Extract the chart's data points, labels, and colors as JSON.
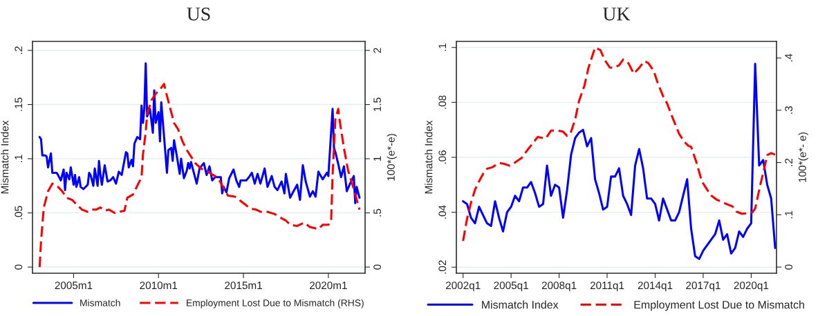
{
  "chart_data": [
    {
      "type": "line",
      "title": "US",
      "ylabel": "Mismatch Index",
      "y2label": "100*(e*-e)",
      "xlim": [
        "2002-08",
        "2022-03"
      ],
      "xticks": [
        {
          "value": "2005-01",
          "label": "2005m1"
        },
        {
          "value": "2010-01",
          "label": "2010m1"
        },
        {
          "value": "2015-01",
          "label": "2015m1"
        },
        {
          "value": "2020-01",
          "label": "2020m1"
        }
      ],
      "ylim": [
        -0.0057,
        0.2083
      ],
      "yticks": [
        {
          "value": 0,
          "label": "0"
        },
        {
          "value": 0.05,
          "label": ".05"
        },
        {
          "value": 0.1,
          "label": ".1"
        },
        {
          "value": 0.15,
          "label": ".15"
        },
        {
          "value": 0.2,
          "label": ".2"
        }
      ],
      "y2lim": [
        -0.057,
        2.083
      ],
      "y2ticks": [
        {
          "value": 0,
          "label": "0"
        },
        {
          "value": 0.5,
          "label": ".5"
        },
        {
          "value": 1,
          "label": "1"
        },
        {
          "value": 1.5,
          "label": "1.5"
        },
        {
          "value": 2,
          "label": "2"
        }
      ],
      "grid": "y",
      "legend": "bottom",
      "series": [
        {
          "name": "Mismatch",
          "color": "#0000ff",
          "line_style": "solid",
          "x": [
            "2003-01",
            "2003-02",
            "2003-03",
            "2003-05",
            "2003-06",
            "2003-07",
            "2003-09",
            "2003-10",
            "2004-01",
            "2004-02",
            "2004-04",
            "2004-06",
            "2004-07",
            "2004-08",
            "2004-10",
            "2004-11",
            "2005-01",
            "2005-02",
            "2005-03",
            "2005-05",
            "2005-06",
            "2005-08",
            "2005-11",
            "2005-12",
            "2006-01",
            "2006-03",
            "2006-04",
            "2006-06",
            "2006-07",
            "2006-08",
            "2006-09",
            "2006-11",
            "2007-01",
            "2007-03",
            "2007-05",
            "2007-07",
            "2007-09",
            "2007-11",
            "2008-02",
            "2008-03",
            "2008-04",
            "2008-06",
            "2008-07",
            "2008-08",
            "2008-10",
            "2008-12",
            "2009-01",
            "2009-02",
            "2009-03",
            "2009-04",
            "2009-05",
            "2009-07",
            "2009-09",
            "2009-10",
            "2009-11",
            "2010-01",
            "2010-02",
            "2010-03",
            "2010-05",
            "2010-07",
            "2010-08",
            "2010-10",
            "2010-11",
            "2010-12",
            "2011-02",
            "2011-04",
            "2011-05",
            "2011-07",
            "2011-09",
            "2011-10",
            "2011-11",
            "2011-12",
            "2012-04",
            "2012-06",
            "2012-09",
            "2012-11",
            "2013-01",
            "2013-03",
            "2013-05",
            "2013-09",
            "2013-10",
            "2013-11",
            "2014-01",
            "2014-03",
            "2014-06",
            "2014-08",
            "2014-10",
            "2014-11",
            "2015-03",
            "2015-05",
            "2015-07",
            "2015-09",
            "2015-11",
            "2016-01",
            "2016-04",
            "2016-06",
            "2016-09",
            "2016-11",
            "2017-01",
            "2017-04",
            "2017-06",
            "2017-07",
            "2017-10",
            "2017-12",
            "2018-03",
            "2018-05",
            "2018-07",
            "2018-09",
            "2018-12",
            "2019-02",
            "2019-04",
            "2019-06",
            "2019-09",
            "2019-12",
            "2020-01",
            "2020-04",
            "2020-05",
            "2020-06",
            "2020-08",
            "2020-10",
            "2020-12",
            "2021-02",
            "2021-04",
            "2021-07",
            "2021-08",
            "2021-09",
            "2021-11"
          ],
          "values": [
            0.12,
            0.118,
            0.103,
            0.103,
            0.102,
            0.092,
            0.105,
            0.087,
            0.087,
            0.085,
            0.08,
            0.09,
            0.071,
            0.087,
            0.081,
            0.092,
            0.076,
            0.085,
            0.074,
            0.083,
            0.074,
            0.072,
            0.076,
            0.087,
            0.085,
            0.075,
            0.091,
            0.075,
            0.098,
            0.085,
            0.076,
            0.094,
            0.079,
            0.08,
            0.083,
            0.077,
            0.088,
            0.085,
            0.106,
            0.105,
            0.092,
            0.099,
            0.093,
            0.114,
            0.12,
            0.118,
            0.149,
            0.133,
            0.146,
            0.188,
            0.139,
            0.146,
            0.124,
            0.163,
            0.133,
            0.143,
            0.116,
            0.152,
            0.12,
            0.087,
            0.108,
            0.11,
            0.098,
            0.117,
            0.102,
            0.086,
            0.1,
            0.082,
            0.089,
            0.096,
            0.091,
            0.097,
            0.077,
            0.091,
            0.096,
            0.085,
            0.093,
            0.08,
            0.083,
            0.083,
            0.068,
            0.074,
            0.069,
            0.082,
            0.09,
            0.08,
            0.074,
            0.08,
            0.08,
            0.083,
            0.087,
            0.077,
            0.086,
            0.077,
            0.091,
            0.074,
            0.084,
            0.074,
            0.071,
            0.079,
            0.068,
            0.086,
            0.064,
            0.069,
            0.076,
            0.062,
            0.094,
            0.079,
            0.065,
            0.07,
            0.065,
            0.088,
            0.081,
            0.087,
            0.084,
            0.146,
            0.11,
            0.106,
            0.095,
            0.083,
            0.093,
            0.07,
            0.076,
            0.084,
            0.059,
            0.074,
            0.064
          ]
        },
        {
          "name": "Employment Lost Due to Mismatch (RHS)",
          "color": "#ff0000",
          "line_style": "dashed",
          "axis": "y2",
          "x": [
            "2003-01",
            "2003-02",
            "2003-04",
            "2003-07",
            "2003-10",
            "2004-02",
            "2004-05",
            "2004-08",
            "2004-12",
            "2005-03",
            "2005-07",
            "2005-11",
            "2006-02",
            "2006-05",
            "2006-08",
            "2006-11",
            "2007-02",
            "2007-06",
            "2007-09",
            "2008-01",
            "2008-03",
            "2008-07",
            "2008-10",
            "2009-01",
            "2009-02",
            "2009-04",
            "2009-05",
            "2009-08",
            "2009-11",
            "2010-02",
            "2010-05",
            "2010-06",
            "2010-09",
            "2010-12",
            "2011-03",
            "2011-06",
            "2011-09",
            "2011-12",
            "2012-03",
            "2012-07",
            "2012-10",
            "2013-01",
            "2013-05",
            "2013-08",
            "2013-11",
            "2014-02",
            "2014-07",
            "2014-11",
            "2015-02",
            "2015-06",
            "2015-10",
            "2016-01",
            "2016-06",
            "2016-11",
            "2017-04",
            "2017-07",
            "2017-10",
            "2018-03",
            "2018-08",
            "2018-12",
            "2019-06",
            "2019-09",
            "2020-01",
            "2020-03",
            "2020-04",
            "2020-06",
            "2020-08",
            "2020-09",
            "2020-12",
            "2021-03",
            "2021-07",
            "2021-11"
          ],
          "values": [
            0,
            0.24,
            0.55,
            0.7,
            0.77,
            0.74,
            0.7,
            0.64,
            0.62,
            0.58,
            0.53,
            0.51,
            0.53,
            0.53,
            0.55,
            0.52,
            0.53,
            0.5,
            0.51,
            0.52,
            0.64,
            0.67,
            0.75,
            0.83,
            1.04,
            1.25,
            1.41,
            1.54,
            1.6,
            1.64,
            1.69,
            1.63,
            1.48,
            1.33,
            1.27,
            1.16,
            1.08,
            1.02,
            0.96,
            0.91,
            0.89,
            0.87,
            0.84,
            0.8,
            0.73,
            0.66,
            0.65,
            0.61,
            0.58,
            0.54,
            0.53,
            0.51,
            0.51,
            0.49,
            0.45,
            0.43,
            0.39,
            0.38,
            0.41,
            0.37,
            0.35,
            0.39,
            0.39,
            0.42,
            0.85,
            1.37,
            1.46,
            1.35,
            1.1,
            0.89,
            0.72,
            0.53
          ]
        }
      ]
    },
    {
      "type": "line",
      "title": "UK",
      "ylabel": "Mismatch Index",
      "y2label": "100*(e*- e)",
      "xlim": [
        "2001-08",
        "2021-08"
      ],
      "xticks": [
        {
          "value": "2002-01",
          "label": "2002q1"
        },
        {
          "value": "2005-01",
          "label": "2005q1"
        },
        {
          "value": "2008-01",
          "label": "2008q1"
        },
        {
          "value": "2011-01",
          "label": "2011q1"
        },
        {
          "value": "2014-01",
          "label": "2014q1"
        },
        {
          "value": "2017-01",
          "label": "2017q1"
        },
        {
          "value": "2020-01",
          "label": "2020q1"
        }
      ],
      "ylim": [
        0.0178,
        0.1022
      ],
      "yticks": [
        {
          "value": 0.02,
          "label": ".02"
        },
        {
          "value": 0.04,
          "label": ".04"
        },
        {
          "value": 0.06,
          "label": ".06"
        },
        {
          "value": 0.08,
          "label": ".08"
        },
        {
          "value": 0.1,
          "label": ".1"
        }
      ],
      "y2lim": [
        -0.0118,
        0.4317
      ],
      "y2ticks": [
        {
          "value": 0,
          "label": "0"
        },
        {
          "value": 0.1,
          "label": ".1"
        },
        {
          "value": 0.2,
          "label": ".2"
        },
        {
          "value": 0.3,
          "label": ".3"
        },
        {
          "value": 0.4,
          "label": ".4"
        }
      ],
      "grid": "y",
      "legend": "bottom",
      "series": [
        {
          "name": "Mismatch Index",
          "color": "#0000ff",
          "line_style": "solid",
          "x": [
            "2002-01",
            "2002-04",
            "2002-07",
            "2002-10",
            "2003-01",
            "2003-04",
            "2003-07",
            "2003-10",
            "2004-01",
            "2004-04",
            "2004-07",
            "2004-10",
            "2005-01",
            "2005-04",
            "2005-07",
            "2005-10",
            "2006-01",
            "2006-04",
            "2006-07",
            "2006-10",
            "2007-01",
            "2007-04",
            "2007-07",
            "2007-10",
            "2008-01",
            "2008-04",
            "2008-07",
            "2008-10",
            "2009-01",
            "2009-04",
            "2009-07",
            "2009-10",
            "2010-01",
            "2010-04",
            "2010-07",
            "2010-10",
            "2011-01",
            "2011-04",
            "2011-07",
            "2011-10",
            "2012-01",
            "2012-04",
            "2012-07",
            "2012-10",
            "2013-01",
            "2013-04",
            "2013-07",
            "2013-10",
            "2014-01",
            "2014-04",
            "2014-07",
            "2014-10",
            "2015-01",
            "2015-04",
            "2015-07",
            "2015-10",
            "2016-01",
            "2016-04",
            "2016-07",
            "2016-10",
            "2017-01",
            "2017-04",
            "2017-07",
            "2017-10",
            "2018-01",
            "2018-04",
            "2018-07",
            "2018-10",
            "2019-01",
            "2019-04",
            "2019-07",
            "2019-10",
            "2020-01",
            "2020-04",
            "2020-07",
            "2020-10",
            "2021-01",
            "2021-04",
            "2021-07"
          ],
          "values": [
            0.044,
            0.043,
            0.038,
            0.036,
            0.042,
            0.039,
            0.036,
            0.035,
            0.044,
            0.038,
            0.033,
            0.04,
            0.042,
            0.046,
            0.044,
            0.049,
            0.049,
            0.051,
            0.047,
            0.042,
            0.043,
            0.057,
            0.046,
            0.05,
            0.049,
            0.038,
            0.048,
            0.061,
            0.067,
            0.069,
            0.07,
            0.064,
            0.067,
            0.052,
            0.047,
            0.041,
            0.042,
            0.053,
            0.053,
            0.056,
            0.046,
            0.043,
            0.039,
            0.057,
            0.063,
            0.056,
            0.045,
            0.045,
            0.043,
            0.037,
            0.045,
            0.041,
            0.037,
            0.037,
            0.04,
            0.046,
            0.052,
            0.034,
            0.024,
            0.023,
            0.026,
            0.028,
            0.03,
            0.032,
            0.037,
            0.03,
            0.032,
            0.025,
            0.027,
            0.033,
            0.031,
            0.034,
            0.036,
            0.094,
            0.057,
            0.059,
            0.05,
            0.045,
            0.027
          ]
        },
        {
          "name": "Employment Lost Due to Mismatch",
          "color": "#ff0000",
          "line_style": "dashed",
          "axis": "y2",
          "x": [
            "2002-01",
            "2002-04",
            "2002-07",
            "2002-10",
            "2003-01",
            "2003-04",
            "2003-07",
            "2003-11",
            "2004-04",
            "2004-07",
            "2004-12",
            "2005-04",
            "2005-09",
            "2006-01",
            "2006-06",
            "2006-09",
            "2007-03",
            "2007-07",
            "2007-12",
            "2008-04",
            "2008-07",
            "2008-10",
            "2009-01",
            "2009-04",
            "2009-08",
            "2009-11",
            "2010-01",
            "2010-04",
            "2010-08",
            "2010-11",
            "2011-03",
            "2011-06",
            "2011-10",
            "2012-01",
            "2012-05",
            "2012-09",
            "2013-01",
            "2013-05",
            "2013-08",
            "2013-12",
            "2014-03",
            "2014-07",
            "2014-10",
            "2015-02",
            "2015-07",
            "2015-11",
            "2016-02",
            "2016-04",
            "2016-08",
            "2016-12",
            "2017-04",
            "2017-07",
            "2017-11",
            "2018-03",
            "2018-07",
            "2018-11",
            "2019-02",
            "2019-06",
            "2019-10",
            "2020-02",
            "2020-04",
            "2020-08",
            "2020-11",
            "2021-01",
            "2021-04",
            "2021-07"
          ],
          "values": [
            0.05,
            0.092,
            0.123,
            0.148,
            0.164,
            0.178,
            0.188,
            0.191,
            0.199,
            0.198,
            0.194,
            0.2,
            0.209,
            0.223,
            0.239,
            0.249,
            0.246,
            0.261,
            0.261,
            0.259,
            0.251,
            0.259,
            0.282,
            0.318,
            0.347,
            0.381,
            0.397,
            0.42,
            0.415,
            0.397,
            0.382,
            0.381,
            0.386,
            0.397,
            0.39,
            0.37,
            0.381,
            0.394,
            0.39,
            0.375,
            0.352,
            0.327,
            0.313,
            0.286,
            0.255,
            0.239,
            0.232,
            0.23,
            0.2,
            0.164,
            0.148,
            0.137,
            0.129,
            0.125,
            0.12,
            0.116,
            0.106,
            0.102,
            0.103,
            0.105,
            0.112,
            0.159,
            0.191,
            0.214,
            0.218,
            0.215
          ]
        }
      ]
    }
  ]
}
